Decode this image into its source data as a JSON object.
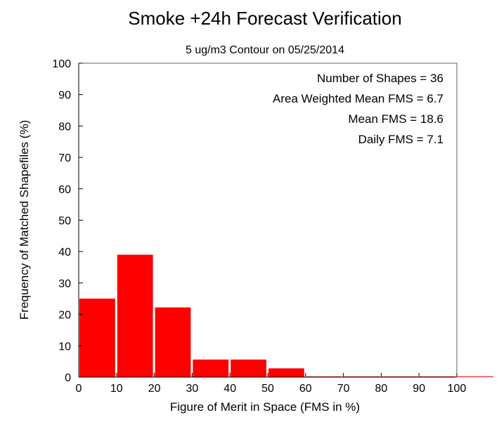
{
  "chart_data": {
    "type": "bar",
    "title": "Smoke +24h Forecast Verification",
    "subtitle": "5 ug/m3 Contour on 05/25/2014",
    "xlabel": "Figure of Merit in Space (FMS in %)",
    "ylabel": "Frequency of Matched Shapefiles (%)",
    "xlim": [
      0,
      100
    ],
    "ylim": [
      0,
      100
    ],
    "xticks": [
      0,
      10,
      20,
      30,
      40,
      50,
      60,
      70,
      80,
      90,
      100
    ],
    "yticks": [
      0,
      10,
      20,
      30,
      40,
      50,
      60,
      70,
      80,
      90,
      100
    ],
    "bin_edges": [
      0,
      10,
      20,
      30,
      40,
      50,
      60,
      70,
      80,
      90,
      100,
      110
    ],
    "values": [
      25,
      39,
      22.2,
      5.6,
      5.6,
      2.8,
      0,
      0,
      0,
      0,
      0
    ],
    "bar_color": "#ff0000",
    "grid": false,
    "annotations": [
      "Number of Shapes = 36",
      "Area Weighted Mean FMS = 6.7",
      "Mean FMS = 18.6",
      "Daily FMS = 7.1"
    ]
  }
}
